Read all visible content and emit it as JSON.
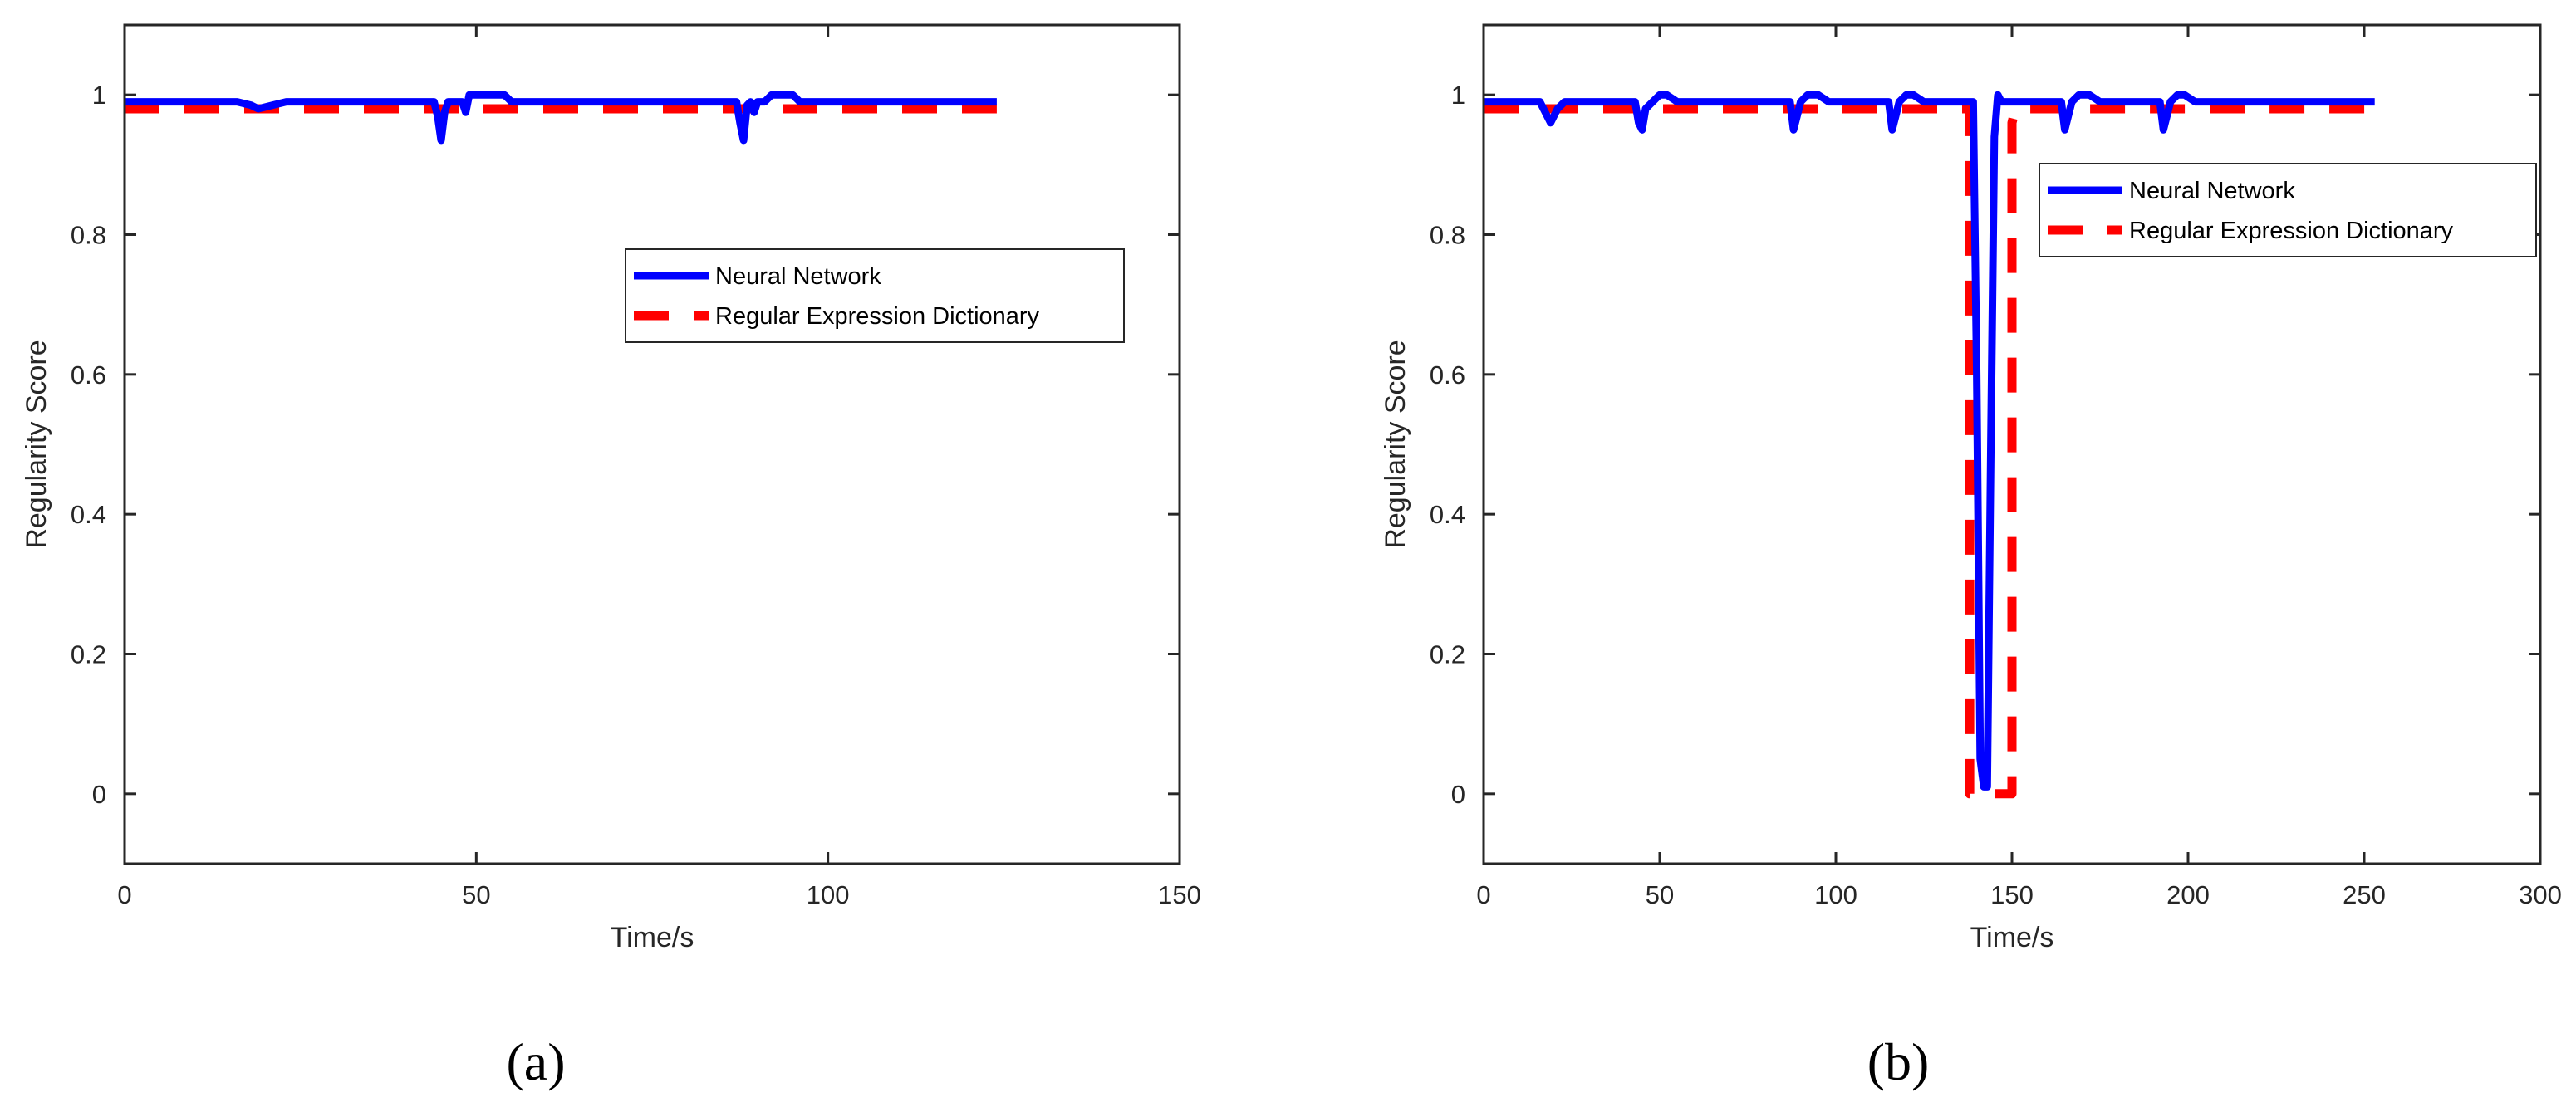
{
  "colors": {
    "neural_network": "#0000ff",
    "regex_dictionary": "#ff0000",
    "axes": "#262626"
  },
  "chart_data": [
    {
      "type": "line",
      "panel_label": "(a)",
      "xlabel": "Time/s",
      "ylabel": "Regularity Score",
      "xlim": [
        0,
        150
      ],
      "ylim": [
        -0.1,
        1.1
      ],
      "xticks": [
        0,
        50,
        100,
        150
      ],
      "yticks": [
        0,
        0.2,
        0.4,
        0.6,
        0.8,
        1
      ],
      "xtick_labels": [
        "0",
        "50",
        "100",
        "150"
      ],
      "ytick_labels": [
        "0",
        "0.2",
        "0.4",
        "0.6",
        "0.8",
        "1"
      ],
      "legend_position": "upper-right-middle",
      "series": [
        {
          "name": "Neural Network",
          "style": "solid",
          "x": [
            0,
            16,
            18,
            19,
            21,
            23,
            44,
            44.5,
            45,
            45.5,
            46,
            46.5,
            47,
            48,
            48.5,
            49,
            50,
            54,
            55,
            87,
            87.5,
            88,
            88.5,
            89,
            89.5,
            90,
            91,
            92,
            95,
            96,
            124
          ],
          "y": [
            0.99,
            0.99,
            0.985,
            0.98,
            0.985,
            0.99,
            0.99,
            0.97,
            0.935,
            0.975,
            0.99,
            0.99,
            0.99,
            0.99,
            0.975,
            1.0,
            1.0,
            1.0,
            0.99,
            0.99,
            0.96,
            0.935,
            0.985,
            0.99,
            0.975,
            0.99,
            0.99,
            1.0,
            1.0,
            0.99,
            0.99
          ]
        },
        {
          "name": "Regular Expression Dictionary",
          "style": "dashed",
          "x": [
            0,
            124
          ],
          "y": [
            0.98,
            0.98
          ]
        }
      ]
    },
    {
      "type": "line",
      "panel_label": "(b)",
      "xlabel": "Time/s",
      "ylabel": "Regularity Score",
      "xlim": [
        0,
        300
      ],
      "ylim": [
        -0.1,
        1.1
      ],
      "xticks": [
        0,
        50,
        100,
        150,
        200,
        250,
        300
      ],
      "yticks": [
        0,
        0.2,
        0.4,
        0.6,
        0.8,
        1
      ],
      "xtick_labels": [
        "0",
        "50",
        "100",
        "150",
        "200",
        "250",
        "300"
      ],
      "ytick_labels": [
        "0",
        "0.2",
        "0.4",
        "0.6",
        "0.8",
        "1"
      ],
      "legend_position": "upper-right",
      "series": [
        {
          "name": "Neural Network",
          "style": "solid",
          "x": [
            0,
            16,
            18,
            19,
            21,
            23,
            43,
            44,
            45,
            46,
            48,
            50,
            52,
            55,
            87,
            88,
            89,
            90,
            92,
            95,
            98,
            115,
            116,
            117,
            118,
            120,
            122,
            125,
            139,
            140,
            141,
            142,
            143,
            144,
            145,
            146,
            147,
            164,
            165,
            166,
            167,
            169,
            172,
            175,
            192,
            193,
            194,
            195,
            197,
            199,
            202,
            253
          ],
          "y": [
            0.99,
            0.99,
            0.97,
            0.96,
            0.98,
            0.99,
            0.99,
            0.96,
            0.95,
            0.98,
            0.99,
            1.0,
            1.0,
            0.99,
            0.99,
            0.95,
            0.97,
            0.99,
            1.0,
            1.0,
            0.99,
            0.99,
            0.95,
            0.97,
            0.99,
            1.0,
            1.0,
            0.99,
            0.99,
            0.6,
            0.05,
            0.01,
            0.01,
            0.5,
            0.94,
            1.0,
            0.99,
            0.99,
            0.95,
            0.97,
            0.99,
            1.0,
            1.0,
            0.99,
            0.99,
            0.95,
            0.97,
            0.99,
            1.0,
            1.0,
            0.99,
            0.99
          ]
        },
        {
          "name": "Regular Expression Dictionary",
          "style": "dashed",
          "x": [
            0,
            137,
            138,
            138,
            150,
            150,
            151,
            253
          ],
          "y": [
            0.98,
            0.98,
            0.98,
            0.0,
            0.0,
            0.96,
            0.98,
            0.98
          ]
        }
      ]
    }
  ]
}
